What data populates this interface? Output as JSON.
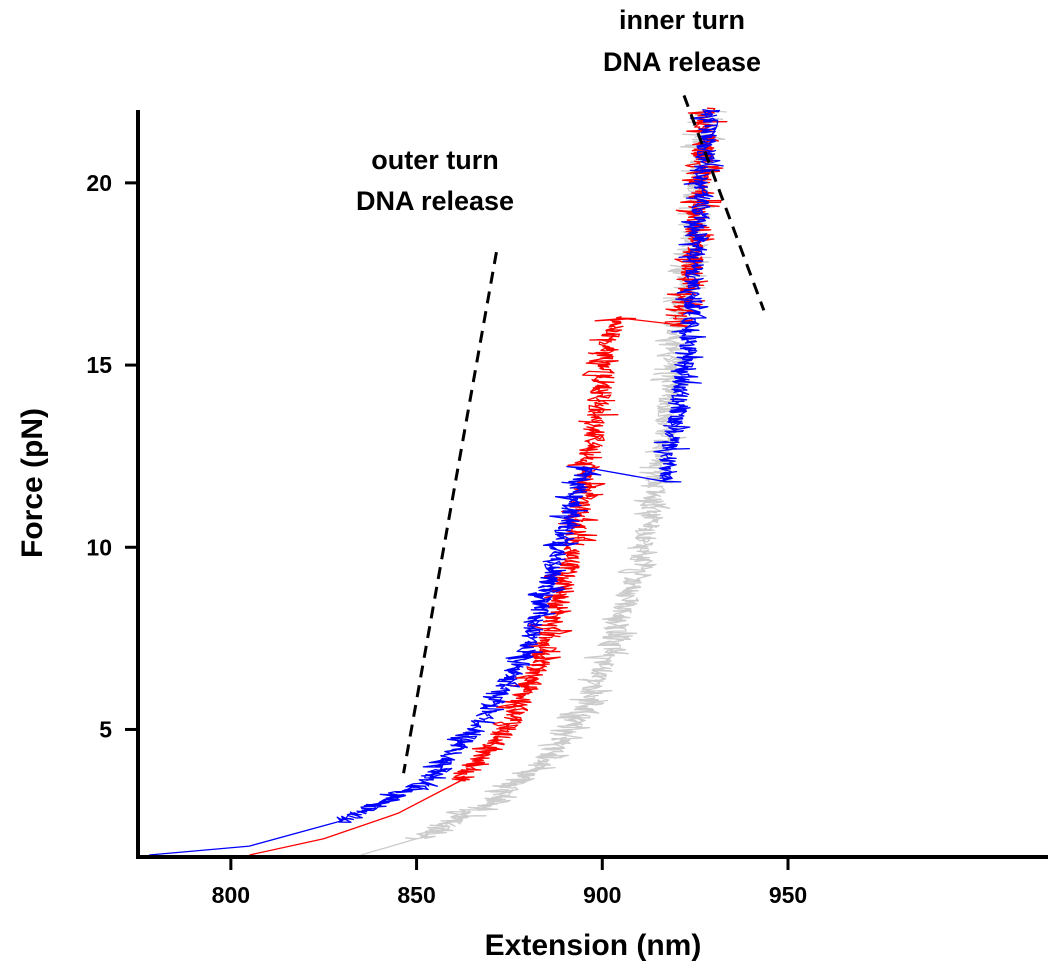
{
  "chart_data": {
    "type": "line",
    "xlabel": "Extension (nm)",
    "ylabel": "Force (pN)",
    "xlim": [
      775,
      1020
    ],
    "ylim": [
      1.5,
      22
    ],
    "xticks": [
      800,
      850,
      900,
      950
    ],
    "yticks": [
      5,
      10,
      15,
      20
    ],
    "grid": false,
    "series": [
      {
        "color": "#cccccc",
        "noise": 3.0,
        "points": [
          [
            835,
            1.5
          ],
          [
            850,
            2.0
          ],
          [
            870,
            3.0
          ],
          [
            885,
            4.2
          ],
          [
            895,
            5.5
          ],
          [
            903,
            7.5
          ],
          [
            911,
            10
          ],
          [
            916,
            12.5
          ],
          [
            919,
            15
          ],
          [
            922,
            17
          ],
          [
            925,
            19
          ],
          [
            928,
            22
          ]
        ]
      },
      {
        "color": "#ff0000",
        "noise": 3.0,
        "points": [
          [
            805,
            1.5
          ],
          [
            825,
            2.0
          ],
          [
            845,
            2.7
          ],
          [
            862,
            3.6
          ],
          [
            874,
            5
          ],
          [
            884,
            7
          ],
          [
            891,
            9.5
          ],
          [
            896,
            12
          ],
          [
            900,
            14.5
          ],
          [
            902,
            15.8
          ],
          [
            904,
            16.3
          ],
          [
            921,
            16.1
          ],
          [
            924,
            17.5
          ],
          [
            926,
            19.5
          ],
          [
            928,
            22
          ]
        ]
      },
      {
        "color": "#0000ff",
        "noise": 2.6,
        "points": [
          [
            778,
            1.5
          ],
          [
            805,
            1.8
          ],
          [
            830,
            2.5
          ],
          [
            852,
            3.5
          ],
          [
            866,
            5
          ],
          [
            879,
            7
          ],
          [
            887,
            9.5
          ],
          [
            893,
            11.5
          ],
          [
            895,
            12.2
          ],
          [
            917,
            11.8
          ],
          [
            920,
            13.5
          ],
          [
            923,
            15.5
          ],
          [
            925,
            17.5
          ],
          [
            927,
            20
          ],
          [
            929,
            22
          ]
        ]
      }
    ],
    "annotations": [
      {
        "text_lines": [
          "outer turn",
          "DNA release"
        ],
        "line": [
          [
            871.5,
            18.1
          ],
          [
            846.5,
            3.8
          ]
        ]
      },
      {
        "text_lines": [
          "inner turn",
          "DNA release"
        ],
        "line": [
          [
            922,
            22.4
          ],
          [
            943.5,
            16.5
          ]
        ]
      }
    ]
  }
}
